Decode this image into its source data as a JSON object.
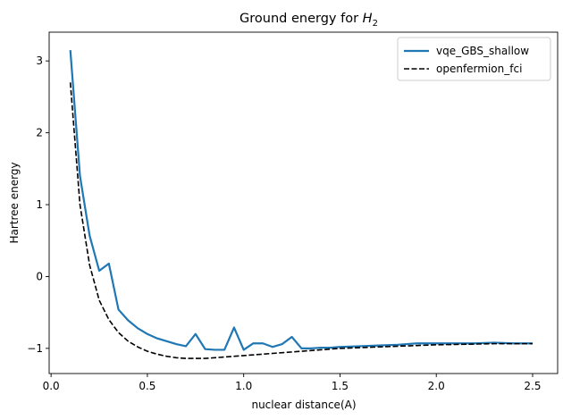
{
  "chart_data": {
    "type": "line",
    "title": "Ground energy for ",
    "title_math": "H",
    "title_math_sub": "2",
    "xlabel": "nuclear distance(A)",
    "ylabel": "Hartree energy",
    "xlim": [
      -0.01,
      2.63
    ],
    "ylim": [
      -1.35,
      3.4
    ],
    "xticks": [
      0.0,
      0.5,
      1.0,
      1.5,
      2.0,
      2.5
    ],
    "xtick_labels": [
      "0.0",
      "0.5",
      "1.0",
      "1.5",
      "2.0",
      "2.5"
    ],
    "yticks": [
      -1,
      0,
      1,
      2,
      3
    ],
    "ytick_labels": [
      "−1",
      "0",
      "1",
      "2",
      "3"
    ],
    "grid": false,
    "legend_position": "top-right",
    "series": [
      {
        "name": "vqe_GBS_shallow",
        "color": "#1f77b4",
        "style": "solid",
        "x": [
          0.1,
          0.15,
          0.2,
          0.25,
          0.3,
          0.35,
          0.4,
          0.45,
          0.5,
          0.55,
          0.6,
          0.65,
          0.7,
          0.75,
          0.8,
          0.85,
          0.9,
          0.95,
          1.0,
          1.05,
          1.1,
          1.15,
          1.2,
          1.25,
          1.3,
          1.35,
          1.4,
          1.45,
          1.5,
          1.6,
          1.7,
          1.8,
          1.9,
          2.0,
          2.1,
          2.2,
          2.3,
          2.4,
          2.5
        ],
        "values": [
          3.15,
          1.4,
          0.57,
          0.08,
          0.18,
          -0.46,
          -0.61,
          -0.72,
          -0.8,
          -0.86,
          -0.9,
          -0.94,
          -0.97,
          -0.8,
          -1.01,
          -1.02,
          -1.02,
          -0.71,
          -1.02,
          -0.93,
          -0.93,
          -0.98,
          -0.94,
          -0.84,
          -1.0,
          -1.0,
          -0.99,
          -0.99,
          -0.98,
          -0.97,
          -0.96,
          -0.95,
          -0.93,
          -0.93,
          -0.93,
          -0.93,
          -0.92,
          -0.93,
          -0.93
        ]
      },
      {
        "name": "openfermion_fci",
        "color": "#000000",
        "style": "dashed",
        "x": [
          0.1,
          0.15,
          0.2,
          0.25,
          0.3,
          0.35,
          0.4,
          0.45,
          0.5,
          0.55,
          0.6,
          0.65,
          0.7,
          0.75,
          0.8,
          0.85,
          0.9,
          0.95,
          1.0,
          1.1,
          1.2,
          1.3,
          1.4,
          1.5,
          1.6,
          1.7,
          1.8,
          1.9,
          2.0,
          2.1,
          2.2,
          2.3,
          2.4,
          2.5
        ],
        "values": [
          2.7,
          1.0,
          0.16,
          -0.33,
          -0.6,
          -0.78,
          -0.9,
          -0.98,
          -1.04,
          -1.08,
          -1.11,
          -1.13,
          -1.14,
          -1.14,
          -1.14,
          -1.13,
          -1.12,
          -1.11,
          -1.1,
          -1.08,
          -1.06,
          -1.04,
          -1.02,
          -1.0,
          -0.99,
          -0.98,
          -0.97,
          -0.96,
          -0.95,
          -0.945,
          -0.94,
          -0.935,
          -0.935,
          -0.935
        ]
      }
    ]
  }
}
